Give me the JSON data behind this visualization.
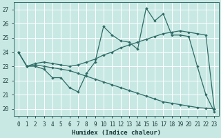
{
  "xlabel": "Humidex (Indice chaleur)",
  "xlim": [
    -0.5,
    23.5
  ],
  "ylim": [
    19.5,
    27.5
  ],
  "yticks": [
    20,
    21,
    22,
    23,
    24,
    25,
    26,
    27
  ],
  "xticks": [
    0,
    1,
    2,
    3,
    4,
    5,
    6,
    7,
    8,
    9,
    10,
    11,
    12,
    13,
    14,
    15,
    16,
    17,
    18,
    19,
    20,
    21,
    22,
    23
  ],
  "background_color": "#c8e8e4",
  "line_color": "#2e6b65",
  "grid_color": "#ffffff",
  "line1_y": [
    24.0,
    23.0,
    23.0,
    22.8,
    22.2,
    22.2,
    21.5,
    21.2,
    22.5,
    23.3,
    25.8,
    25.2,
    24.8,
    24.7,
    24.2,
    27.1,
    26.2,
    26.7,
    25.2,
    25.2,
    25.1,
    23.0,
    21.0,
    19.8
  ],
  "line2_y": [
    24.0,
    23.0,
    23.2,
    23.3,
    23.2,
    23.1,
    23.0,
    23.1,
    23.3,
    23.5,
    23.8,
    24.0,
    24.3,
    24.5,
    24.7,
    24.9,
    25.1,
    25.3,
    25.4,
    25.5,
    25.4,
    25.3,
    25.2,
    20.0
  ],
  "line3_y": [
    24.0,
    23.0,
    23.1,
    23.0,
    22.9,
    22.8,
    22.7,
    22.5,
    22.3,
    22.1,
    21.9,
    21.7,
    21.5,
    21.3,
    21.1,
    20.9,
    20.7,
    20.5,
    20.4,
    20.3,
    20.2,
    20.1,
    20.05,
    20.0
  ]
}
